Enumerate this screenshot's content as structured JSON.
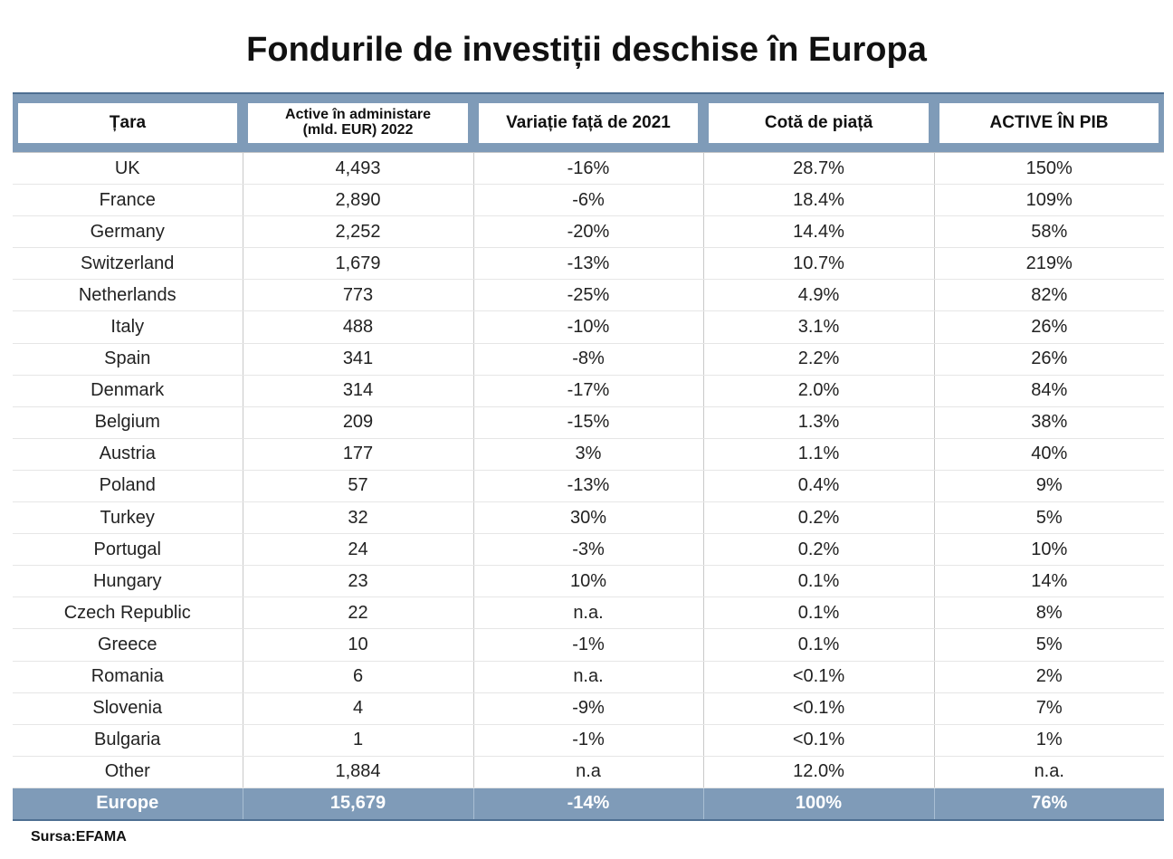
{
  "title": "Fondurile de investiții deschise în Europa",
  "source": "Sursa:EFAMA",
  "chart_data": {
    "type": "table",
    "title": "Fondurile de investiții deschise în Europa",
    "columns": [
      {
        "lines": [
          "Țara"
        ]
      },
      {
        "lines": [
          "Active în administare",
          "(mld. EUR) 2022"
        ]
      },
      {
        "lines": [
          "Variație față de 2021"
        ]
      },
      {
        "lines": [
          "Cotă de piață"
        ]
      },
      {
        "lines": [
          "ACTIVE  ÎN PIB"
        ]
      }
    ],
    "rows": [
      [
        "UK",
        "4,493",
        "-16%",
        "28.7%",
        "150%"
      ],
      [
        "France",
        "2,890",
        "-6%",
        "18.4%",
        "109%"
      ],
      [
        "Germany",
        "2,252",
        "-20%",
        "14.4%",
        "58%"
      ],
      [
        "Switzerland",
        "1,679",
        "-13%",
        "10.7%",
        "219%"
      ],
      [
        "Netherlands",
        "773",
        "-25%",
        "4.9%",
        "82%"
      ],
      [
        "Italy",
        "488",
        "-10%",
        "3.1%",
        "26%"
      ],
      [
        "Spain",
        "341",
        "-8%",
        "2.2%",
        "26%"
      ],
      [
        "Denmark",
        "314",
        "-17%",
        "2.0%",
        "84%"
      ],
      [
        "Belgium",
        "209",
        "-15%",
        "1.3%",
        "38%"
      ],
      [
        "Austria",
        "177",
        "3%",
        "1.1%",
        "40%"
      ],
      [
        "Poland",
        "57",
        "-13%",
        "0.4%",
        "9%"
      ],
      [
        "Turkey",
        "32",
        "30%",
        "0.2%",
        "5%"
      ],
      [
        "Portugal",
        "24",
        "-3%",
        "0.2%",
        "10%"
      ],
      [
        "Hungary",
        "23",
        "10%",
        "0.1%",
        "14%"
      ],
      [
        "Czech Republic",
        "22",
        "n.a.",
        "0.1%",
        "8%"
      ],
      [
        "Greece",
        "10",
        "-1%",
        "0.1%",
        "5%"
      ],
      [
        "Romania",
        "6",
        "n.a.",
        "<0.1%",
        "2%"
      ],
      [
        "Slovenia",
        "4",
        "-9%",
        "<0.1%",
        "7%"
      ],
      [
        "Bulgaria",
        "1",
        "-1%",
        "<0.1%",
        "1%"
      ],
      [
        "Other",
        "1,884",
        "n.a",
        "12.0%",
        "n.a."
      ]
    ],
    "total": [
      "Europe",
      "15,679",
      "-14%",
      "100%",
      "76%"
    ]
  },
  "colors": {
    "header_band": "#7f9bb8",
    "header_border": "#4e6f92",
    "total_text": "#ffffff"
  }
}
